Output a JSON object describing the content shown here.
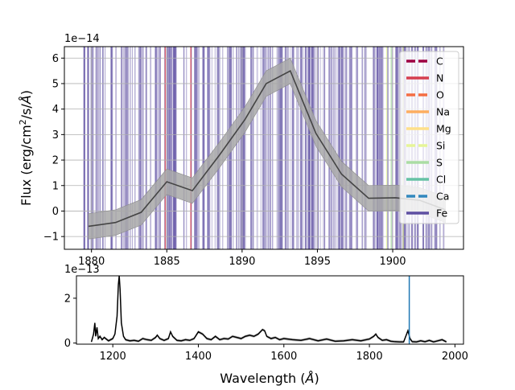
{
  "chart_data": [
    {
      "type": "line",
      "title": "",
      "ylabel": "Flux (erg/cm²/s/Å)",
      "ylabel_parts": {
        "pre": "Flux (erg/cm",
        "sup": "2",
        "post": "/s/",
        "angstrom": "Å",
        "close": ")"
      },
      "offset_text": "1e−14",
      "xlim": [
        1878.2,
        1904.7
      ],
      "ylim": [
        -1.5,
        6.45
      ],
      "xticks": [
        1880,
        1885,
        1890,
        1895,
        1900
      ],
      "yticks": [
        -1,
        0,
        1,
        2,
        3,
        4,
        5,
        6
      ],
      "grid": true,
      "legend_placement": "upper right",
      "series": [
        {
          "style": "line-with-error-band",
          "color": "#444444",
          "band_color": "#a8a8a8",
          "x": [
            1879.8,
            1881.6,
            1883.3,
            1885.0,
            1886.7,
            1888.5,
            1890.2,
            1891.6,
            1893.2,
            1894.9,
            1896.6,
            1898.4,
            1900.2,
            1901.8,
            1903.5
          ],
          "y": [
            -0.6,
            -0.45,
            -0.05,
            1.15,
            0.8,
            2.2,
            3.6,
            5.0,
            5.5,
            3.05,
            1.45,
            0.5,
            0.52,
            0.42,
            0.05
          ],
          "err": [
            0.5,
            0.5,
            0.5,
            0.5,
            0.5,
            0.5,
            0.5,
            0.5,
            0.5,
            0.5,
            0.5,
            0.5,
            0.5,
            0.5,
            0.5
          ]
        }
      ],
      "legend": [
        {
          "label": "C",
          "color": "#9e0142",
          "dashed": true
        },
        {
          "label": "N",
          "color": "#d53e4f",
          "dashed": false
        },
        {
          "label": "O",
          "color": "#f46d43",
          "dashed": true
        },
        {
          "label": "Na",
          "color": "#fdae61",
          "dashed": false
        },
        {
          "label": "Mg",
          "color": "#fee08b",
          "dashed": false
        },
        {
          "label": "Si",
          "color": "#e6f598",
          "dashed": true
        },
        {
          "label": "S",
          "color": "#abdda4",
          "dashed": false
        },
        {
          "label": "Cl",
          "color": "#66c2a5",
          "dashed": false
        },
        {
          "label": "Ca",
          "color": "#3288bd",
          "dashed": true
        },
        {
          "label": "Fe",
          "color": "#5e4fa2",
          "dashed": false
        }
      ],
      "line_markers": {
        "Fe": {
          "color": "#5e4fa2",
          "count": 260,
          "range": [
            1879.5,
            1903.5
          ]
        },
        "others": [
          {
            "element": "N",
            "color": "#d53e4f",
            "x": [
              1884.9,
              1886.6
            ]
          },
          {
            "element": "Si",
            "color": "#e6f598",
            "x": [
              1899.6,
              1900.7
            ]
          },
          {
            "element": "S",
            "color": "#abdda4",
            "x": [
              1899.9
            ]
          }
        ]
      }
    },
    {
      "type": "line",
      "title": "",
      "xlabel": "Wavelength (Å)",
      "xlabel_parts": {
        "pre": "Wavelength (",
        "angstrom": "Å",
        "close": ")"
      },
      "offset_text": "1e−13",
      "xlim": [
        1115,
        2020
      ],
      "ylim": [
        -0.05,
        3.0
      ],
      "xticks": [
        1200,
        1400,
        1600,
        1800,
        2000
      ],
      "yticks": [
        0,
        2
      ],
      "grid": false,
      "series": [
        {
          "style": "line-with-error-band",
          "color": "#000000",
          "band_color": "#aaaaaa",
          "x": [
            1150,
            1155,
            1158,
            1160,
            1163,
            1166,
            1170,
            1175,
            1180,
            1190,
            1200,
            1205,
            1210,
            1213,
            1215,
            1217,
            1220,
            1225,
            1230,
            1240,
            1250,
            1260,
            1270,
            1280,
            1290,
            1300,
            1304,
            1310,
            1320,
            1330,
            1335,
            1340,
            1350,
            1360,
            1370,
            1380,
            1390,
            1400,
            1410,
            1420,
            1430,
            1440,
            1450,
            1460,
            1470,
            1480,
            1490,
            1500,
            1510,
            1520,
            1530,
            1540,
            1550,
            1555,
            1560,
            1570,
            1580,
            1590,
            1600,
            1620,
            1640,
            1660,
            1680,
            1700,
            1720,
            1740,
            1760,
            1780,
            1800,
            1810,
            1815,
            1820,
            1830,
            1840,
            1850,
            1860,
            1870,
            1880,
            1890,
            1895,
            1900,
            1910,
            1920,
            1930,
            1940,
            1950,
            1960,
            1970,
            1980
          ],
          "y": [
            0.05,
            0.4,
            0.9,
            0.3,
            0.7,
            0.2,
            0.3,
            0.15,
            0.25,
            0.1,
            0.2,
            0.4,
            1.2,
            2.6,
            3.0,
            2.4,
            0.9,
            0.3,
            0.15,
            0.1,
            0.12,
            0.08,
            0.2,
            0.15,
            0.12,
            0.25,
            0.35,
            0.2,
            0.12,
            0.2,
            0.5,
            0.3,
            0.12,
            0.1,
            0.15,
            0.12,
            0.2,
            0.5,
            0.4,
            0.2,
            0.15,
            0.3,
            0.15,
            0.2,
            0.18,
            0.3,
            0.25,
            0.2,
            0.3,
            0.35,
            0.3,
            0.4,
            0.6,
            0.55,
            0.3,
            0.2,
            0.25,
            0.15,
            0.2,
            0.15,
            0.12,
            0.2,
            0.1,
            0.18,
            0.08,
            0.1,
            0.15,
            0.1,
            0.18,
            0.3,
            0.4,
            0.25,
            0.12,
            0.15,
            0.08,
            0.06,
            0.05,
            0.05,
            0.55,
            0.2,
            0.06,
            0.05,
            0.1,
            0.06,
            0.12,
            0.05,
            0.1,
            0.15,
            0.05
          ],
          "err": 0.06
        }
      ],
      "vline": {
        "x": 1893.2,
        "color": "#1f77b4"
      }
    }
  ]
}
